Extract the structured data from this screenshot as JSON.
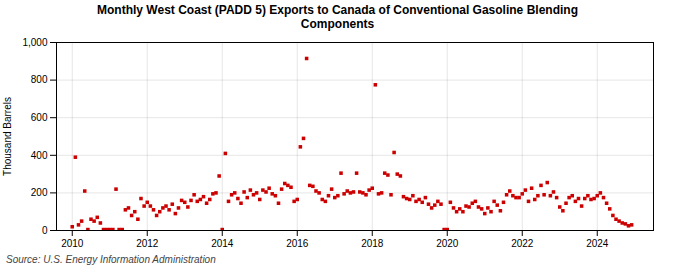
{
  "chart_data": {
    "type": "scatter",
    "title": "Monthly West Coast (PADD 5) Exports to Canada of Conventional Gasoline Blending\nComponents",
    "ylabel": "Thousand Barrels",
    "source": "Source: U.S. Energy Information Administration",
    "color": "#cc0000",
    "marker": "square",
    "grid": true,
    "xlim": [
      2009.58,
      2025.5
    ],
    "xticks": [
      2010,
      2012,
      2014,
      2016,
      2018,
      2020,
      2022,
      2024
    ],
    "ylim": [
      0,
      1000
    ],
    "yticks": [
      0,
      200,
      400,
      600,
      800,
      {
        "value": 1000,
        "label": "1,000"
      }
    ],
    "x": [
      2010.0,
      2010.083,
      2010.167,
      2010.25,
      2010.333,
      2010.417,
      2010.5,
      2010.583,
      2010.667,
      2010.75,
      2010.833,
      2010.917,
      2011.0,
      2011.083,
      2011.167,
      2011.25,
      2011.333,
      2011.417,
      2011.5,
      2011.583,
      2011.667,
      2011.75,
      2011.833,
      2011.917,
      2012.0,
      2012.083,
      2012.167,
      2012.25,
      2012.333,
      2012.417,
      2012.5,
      2012.583,
      2012.667,
      2012.75,
      2012.833,
      2012.917,
      2013.0,
      2013.083,
      2013.167,
      2013.25,
      2013.333,
      2013.417,
      2013.5,
      2013.583,
      2013.667,
      2013.75,
      2013.833,
      2013.917,
      2014.0,
      2014.083,
      2014.167,
      2014.25,
      2014.333,
      2014.417,
      2014.5,
      2014.583,
      2014.667,
      2014.75,
      2014.833,
      2014.917,
      2015.0,
      2015.083,
      2015.167,
      2015.25,
      2015.333,
      2015.417,
      2015.5,
      2015.583,
      2015.667,
      2015.75,
      2015.833,
      2015.917,
      2016.0,
      2016.083,
      2016.167,
      2016.25,
      2016.333,
      2016.417,
      2016.5,
      2016.583,
      2016.667,
      2016.75,
      2016.833,
      2016.917,
      2017.0,
      2017.083,
      2017.167,
      2017.25,
      2017.333,
      2017.417,
      2017.5,
      2017.583,
      2017.667,
      2017.75,
      2017.833,
      2017.917,
      2018.0,
      2018.083,
      2018.167,
      2018.25,
      2018.333,
      2018.417,
      2018.5,
      2018.583,
      2018.667,
      2018.75,
      2018.833,
      2018.917,
      2019.0,
      2019.083,
      2019.167,
      2019.25,
      2019.333,
      2019.417,
      2019.5,
      2019.583,
      2019.667,
      2019.75,
      2019.833,
      2019.917,
      2020.0,
      2020.083,
      2020.167,
      2020.25,
      2020.333,
      2020.417,
      2020.5,
      2020.583,
      2020.667,
      2020.75,
      2020.833,
      2020.917,
      2021.0,
      2021.083,
      2021.167,
      2021.25,
      2021.333,
      2021.417,
      2021.5,
      2021.583,
      2021.667,
      2021.75,
      2021.833,
      2021.917,
      2022.0,
      2022.083,
      2022.167,
      2022.25,
      2022.333,
      2022.417,
      2022.5,
      2022.583,
      2022.667,
      2022.75,
      2022.833,
      2022.917,
      2023.0,
      2023.083,
      2023.167,
      2023.25,
      2023.333,
      2023.417,
      2023.5,
      2023.583,
      2023.667,
      2023.75,
      2023.833,
      2023.917,
      2024.0,
      2024.083,
      2024.167,
      2024.25,
      2024.333,
      2024.417,
      2024.5,
      2024.583,
      2024.667,
      2024.75,
      2024.833,
      2024.917
    ],
    "values": [
      20,
      390,
      30,
      50,
      210,
      5,
      60,
      50,
      70,
      40,
      5,
      5,
      5,
      5,
      220,
      5,
      5,
      110,
      120,
      80,
      100,
      60,
      170,
      130,
      150,
      130,
      110,
      80,
      100,
      120,
      130,
      110,
      140,
      90,
      120,
      160,
      150,
      125,
      160,
      190,
      155,
      165,
      180,
      145,
      165,
      195,
      200,
      290,
      5,
      410,
      155,
      190,
      200,
      170,
      145,
      205,
      175,
      215,
      190,
      200,
      165,
      215,
      205,
      225,
      195,
      185,
      145,
      220,
      250,
      240,
      230,
      155,
      165,
      445,
      490,
      915,
      240,
      235,
      210,
      200,
      165,
      155,
      185,
      220,
      175,
      185,
      305,
      195,
      210,
      200,
      205,
      305,
      205,
      200,
      190,
      215,
      225,
      775,
      195,
      200,
      305,
      295,
      190,
      415,
      300,
      290,
      180,
      170,
      165,
      185,
      155,
      165,
      150,
      175,
      140,
      120,
      135,
      155,
      140,
      5,
      5,
      150,
      120,
      100,
      115,
      100,
      130,
      125,
      145,
      155,
      125,
      115,
      90,
      120,
      100,
      155,
      135,
      105,
      150,
      190,
      210,
      185,
      175,
      175,
      195,
      215,
      155,
      225,
      165,
      185,
      240,
      190,
      255,
      185,
      205,
      175,
      125,
      105,
      145,
      175,
      185,
      155,
      170,
      130,
      170,
      185,
      165,
      170,
      185,
      200,
      175,
      145,
      115,
      80,
      60,
      50,
      40,
      35,
      25,
      30
    ]
  }
}
